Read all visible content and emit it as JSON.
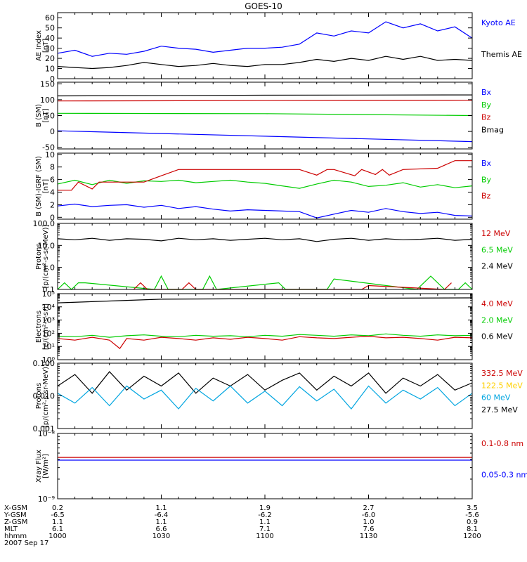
{
  "title": "GOES-10",
  "colors": {
    "black": "#000000",
    "blue": "#0000ff",
    "green": "#00cc00",
    "red": "#cc0000",
    "yellow": "#ffd000",
    "cyan": "#00a5e0"
  },
  "footer": {
    "rows": [
      {
        "label": "X-GSM",
        "values": [
          "0.2",
          "1.1",
          "1.9",
          "2.7",
          "3.5"
        ]
      },
      {
        "label": "Y-GSM",
        "values": [
          "-6.5",
          "-6.4",
          "-6.2",
          "-6.0",
          "-5.6"
        ]
      },
      {
        "label": "Z-GSM",
        "values": [
          "1.1",
          "1.1",
          "1.1",
          "1.0",
          "0.9"
        ]
      },
      {
        "label": "MLT",
        "values": [
          "6.1",
          "6.6",
          "7.1",
          "7.6",
          "8.1"
        ]
      },
      {
        "label": "hhmm",
        "values": [
          "1000",
          "1030",
          "1100",
          "1130",
          "1200"
        ]
      }
    ],
    "date": "2007 Sep 17"
  },
  "chart_data": [
    {
      "type": "line",
      "ylabel": [
        "AE Index",
        "[nT]"
      ],
      "ylim": [
        0,
        65
      ],
      "yticks": [
        0,
        10,
        20,
        30,
        40,
        50,
        60
      ],
      "ytick_labels": [
        "0",
        "10",
        "20",
        "30",
        "40",
        "50",
        "60"
      ],
      "scale": "linear",
      "legend": [
        {
          "label": "Kyoto AE",
          "color": "blue"
        },
        {
          "label": "Themis AE",
          "color": "black"
        }
      ],
      "series": [
        {
          "name": "Kyoto AE",
          "color": "blue",
          "x": [
            0,
            5,
            10,
            15,
            20,
            25,
            30,
            35,
            40,
            45,
            50,
            55,
            60,
            65,
            70,
            75,
            80,
            85,
            90,
            95,
            100,
            105,
            110,
            115,
            120
          ],
          "y": [
            25,
            28,
            22,
            25,
            24,
            27,
            32,
            30,
            29,
            26,
            28,
            30,
            30,
            31,
            34,
            45,
            42,
            47,
            45,
            56,
            50,
            54,
            47,
            51,
            40
          ]
        },
        {
          "name": "Themis AE",
          "color": "black",
          "x": [
            0,
            5,
            10,
            15,
            20,
            25,
            30,
            35,
            40,
            45,
            50,
            55,
            60,
            65,
            70,
            75,
            80,
            85,
            90,
            95,
            100,
            105,
            110,
            115,
            120
          ],
          "y": [
            12,
            11,
            10,
            11,
            13,
            16,
            14,
            12,
            13,
            15,
            13,
            12,
            14,
            14,
            16,
            19,
            17,
            20,
            18,
            22,
            19,
            22,
            18,
            19,
            18
          ]
        }
      ]
    },
    {
      "type": "line",
      "ylabel": [
        "B (SM)",
        "[nT]"
      ],
      "ylim": [
        -55,
        155
      ],
      "yticks": [
        -50,
        0,
        50,
        100,
        150
      ],
      "ytick_labels": [
        "-50",
        "0",
        "50",
        "100",
        "150"
      ],
      "scale": "linear",
      "legend": [
        {
          "label": "Bx",
          "color": "blue"
        },
        {
          "label": "By",
          "color": "green"
        },
        {
          "label": "Bz",
          "color": "red"
        },
        {
          "label": "Bmag",
          "color": "black"
        }
      ],
      "series": [
        {
          "name": "Bx",
          "color": "blue",
          "x": [
            0,
            120
          ],
          "y": [
            2,
            -32
          ]
        },
        {
          "name": "By",
          "color": "green",
          "x": [
            0,
            60,
            120
          ],
          "y": [
            57,
            56,
            50
          ]
        },
        {
          "name": "Bz",
          "color": "red",
          "x": [
            0,
            60,
            120
          ],
          "y": [
            96,
            97,
            98
          ]
        },
        {
          "name": "Bmag",
          "color": "black",
          "x": [
            0,
            60,
            120
          ],
          "y": [
            112,
            114,
            115
          ]
        }
      ]
    },
    {
      "type": "line",
      "ylabel": [
        "B (SM)-IGRF (SM)",
        "[nT]"
      ],
      "ylim": [
        -0.3,
        10.2
      ],
      "yticks": [
        0,
        2,
        4,
        6,
        8,
        10
      ],
      "ytick_labels": [
        "0",
        "2",
        "4",
        "6",
        "8",
        "10"
      ],
      "scale": "linear",
      "legend": [
        {
          "label": "Bx",
          "color": "blue"
        },
        {
          "label": "By",
          "color": "green"
        },
        {
          "label": "Bz",
          "color": "red"
        }
      ],
      "series": [
        {
          "name": "Bx",
          "color": "blue",
          "x": [
            0,
            5,
            10,
            15,
            20,
            25,
            30,
            35,
            40,
            45,
            50,
            55,
            60,
            65,
            70,
            75,
            80,
            85,
            90,
            95,
            100,
            105,
            110,
            115,
            120
          ],
          "y": [
            1.8,
            2.1,
            1.7,
            1.9,
            2.0,
            1.6,
            1.9,
            1.4,
            1.7,
            1.3,
            1.0,
            1.2,
            1.1,
            1.0,
            0.9,
            -0.1,
            0.5,
            1.1,
            0.8,
            1.4,
            0.9,
            0.6,
            0.8,
            0.3,
            0.2
          ]
        },
        {
          "name": "By",
          "color": "green",
          "x": [
            0,
            5,
            10,
            15,
            20,
            25,
            30,
            35,
            40,
            45,
            50,
            55,
            60,
            65,
            70,
            75,
            80,
            85,
            90,
            95,
            100,
            105,
            110,
            115,
            120
          ],
          "y": [
            5.3,
            5.9,
            5.2,
            5.9,
            5.4,
            5.8,
            5.7,
            5.9,
            5.5,
            5.7,
            5.9,
            5.6,
            5.4,
            5.0,
            4.6,
            5.3,
            5.9,
            5.6,
            4.9,
            5.1,
            5.5,
            4.8,
            5.2,
            4.7,
            5.0
          ]
        },
        {
          "name": "Bz",
          "color": "red",
          "x": [
            0,
            4,
            6,
            10,
            12,
            25,
            30,
            35,
            50,
            60,
            70,
            75,
            78,
            80,
            86,
            88,
            92,
            94,
            96,
            100,
            110,
            115,
            120
          ],
          "y": [
            4.3,
            4.3,
            5.6,
            4.5,
            5.6,
            5.6,
            6.6,
            7.6,
            7.6,
            7.6,
            7.6,
            6.7,
            7.6,
            7.6,
            6.6,
            7.6,
            6.8,
            7.6,
            6.7,
            7.6,
            7.8,
            9.0,
            9.0
          ]
        }
      ]
    },
    {
      "type": "line",
      "ylabel": [
        "Protons",
        "[p/(cm²-s-sr-MeV)]"
      ],
      "ylim": [
        0.1,
        100
      ],
      "yticks": [
        0.1,
        1,
        10,
        100
      ],
      "ytick_labels": [
        "0.1",
        "1.0",
        "10.0",
        "100.0"
      ],
      "scale": "log",
      "legend": [
        {
          "label": "12 MeV",
          "color": "red"
        },
        {
          "label": "6.5 MeV",
          "color": "green"
        },
        {
          "label": "2.4 MeV",
          "color": "black"
        }
      ],
      "series": [
        {
          "name": "2.4 MeV",
          "color": "black",
          "x": [
            0,
            5,
            10,
            15,
            20,
            25,
            30,
            35,
            40,
            45,
            50,
            55,
            60,
            65,
            70,
            75,
            80,
            85,
            90,
            95,
            100,
            105,
            110,
            115,
            120
          ],
          "y": [
            20,
            18,
            21,
            17,
            20,
            19,
            16,
            21,
            18,
            20,
            17,
            19,
            21,
            18,
            20,
            15,
            19,
            21,
            17,
            20,
            18,
            19,
            21,
            17,
            19
          ]
        },
        {
          "name": "6.5 MeV",
          "color": "green",
          "x": [
            0,
            2,
            4,
            6,
            8,
            28,
            30,
            32,
            42,
            44,
            46,
            64,
            66,
            78,
            80,
            104,
            106,
            108,
            112,
            116,
            118,
            120
          ],
          "y": [
            0.1,
            0.2,
            0.1,
            0.2,
            0.2,
            0.1,
            0.4,
            0.1,
            0.1,
            0.4,
            0.1,
            0.2,
            0.1,
            0.1,
            0.3,
            0.1,
            0.2,
            0.4,
            0.1,
            0.1,
            0.2,
            0.1
          ]
        },
        {
          "name": "12 MeV",
          "color": "red",
          "x": [
            22,
            24,
            26,
            36,
            38,
            40,
            88,
            90,
            112,
            114
          ],
          "y": [
            0.1,
            0.2,
            0.1,
            0.1,
            0.2,
            0.1,
            0.1,
            0.15,
            0.1,
            0.2
          ]
        }
      ]
    },
    {
      "type": "line",
      "ylabel": [
        "Electrons",
        "[e/(cm²-s-sr)]"
      ],
      "ylim": [
        1,
        100000
      ],
      "yticks": [
        1,
        10,
        100,
        1000,
        10000,
        100000
      ],
      "ytick_labels": [
        "10⁰",
        "10¹",
        "10²",
        "10³",
        "10⁴",
        "10⁵"
      ],
      "scale": "log",
      "legend": [
        {
          "label": "4.0 MeV",
          "color": "red"
        },
        {
          "label": "2.0 MeV",
          "color": "green"
        },
        {
          "label": "0.6 MeV",
          "color": "black"
        }
      ],
      "series": [
        {
          "name": "0.6 MeV",
          "color": "black",
          "x": [
            0,
            30,
            60,
            90,
            120
          ],
          "y": [
            20000,
            38000,
            42000,
            45000,
            48000
          ]
        },
        {
          "name": "2.0 MeV",
          "color": "green",
          "x": [
            0,
            5,
            10,
            15,
            20,
            25,
            30,
            35,
            40,
            45,
            50,
            55,
            60,
            65,
            70,
            75,
            80,
            85,
            90,
            95,
            100,
            105,
            110,
            115,
            120
          ],
          "y": [
            60,
            55,
            70,
            50,
            65,
            75,
            60,
            55,
            70,
            60,
            65,
            55,
            70,
            60,
            80,
            70,
            60,
            75,
            65,
            90,
            70,
            60,
            75,
            65,
            70
          ]
        },
        {
          "name": "4.0 MeV",
          "color": "red",
          "x": [
            0,
            5,
            10,
            15,
            18,
            20,
            25,
            30,
            35,
            40,
            45,
            50,
            55,
            60,
            65,
            70,
            75,
            80,
            85,
            90,
            95,
            100,
            105,
            110,
            115,
            120
          ],
          "y": [
            40,
            30,
            50,
            30,
            7,
            40,
            30,
            50,
            40,
            30,
            45,
            35,
            50,
            40,
            30,
            55,
            45,
            40,
            50,
            60,
            45,
            50,
            40,
            30,
            50,
            45
          ]
        }
      ]
    },
    {
      "type": "line",
      "ylabel": [
        "Protons",
        "[p/(cm²-s-sr-MeV)]"
      ],
      "ylim": [
        0.001,
        0.1
      ],
      "yticks": [
        0.001,
        0.01,
        0.1
      ],
      "ytick_labels": [
        "0.001",
        "0.010",
        "0.100"
      ],
      "scale": "log",
      "legend": [
        {
          "label": "332.5 MeV",
          "color": "red"
        },
        {
          "label": "122.5 MeV",
          "color": "yellow"
        },
        {
          "label": "60 MeV",
          "color": "cyan"
        },
        {
          "label": "27.5 MeV",
          "color": "black"
        }
      ],
      "series": [
        {
          "name": "27.5 MeV",
          "color": "black",
          "x": [
            0,
            5,
            10,
            15,
            20,
            25,
            30,
            35,
            40,
            45,
            50,
            55,
            60,
            65,
            70,
            75,
            80,
            85,
            90,
            95,
            100,
            105,
            110,
            115,
            120
          ],
          "y": [
            0.02,
            0.045,
            0.012,
            0.055,
            0.015,
            0.04,
            0.02,
            0.05,
            0.012,
            0.035,
            0.02,
            0.045,
            0.015,
            0.03,
            0.05,
            0.015,
            0.04,
            0.02,
            0.05,
            0.012,
            0.035,
            0.02,
            0.045,
            0.015,
            0.025
          ]
        },
        {
          "name": "60 MeV",
          "color": "cyan",
          "x": [
            0,
            5,
            10,
            15,
            20,
            25,
            30,
            35,
            40,
            45,
            50,
            55,
            60,
            65,
            70,
            75,
            80,
            85,
            90,
            95,
            100,
            105,
            110,
            115,
            120
          ],
          "y": [
            0.012,
            0.006,
            0.018,
            0.005,
            0.02,
            0.008,
            0.015,
            0.004,
            0.017,
            0.007,
            0.02,
            0.006,
            0.014,
            0.005,
            0.019,
            0.007,
            0.016,
            0.004,
            0.02,
            0.006,
            0.015,
            0.008,
            0.018,
            0.005,
            0.012
          ]
        }
      ]
    },
    {
      "type": "line",
      "ylabel": [
        "Xray Flux",
        "[W/m²]"
      ],
      "ylim": [
        1e-09,
        1e-08
      ],
      "yticks": [
        1e-09,
        1e-08
      ],
      "ytick_labels": [
        "10⁻⁹",
        "10⁻⁸"
      ],
      "scale": "log",
      "legend": [
        {
          "label": "0.1-0.8 nm",
          "color": "red"
        },
        {
          "label": "0.05-0.3 nm",
          "color": "blue"
        }
      ],
      "series": [
        {
          "name": "0.1-0.8 nm",
          "color": "red",
          "x": [
            0,
            120
          ],
          "y": [
            4.3e-09,
            4.3e-09
          ]
        },
        {
          "name": "0.05-0.3 nm",
          "color": "blue",
          "x": [
            0,
            120
          ],
          "y": [
            3.9e-09,
            3.9e-09
          ]
        }
      ]
    }
  ]
}
